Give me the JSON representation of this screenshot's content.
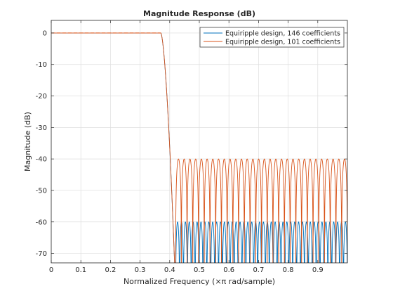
{
  "chart_data": {
    "type": "line",
    "title": "Magnitude Response (dB)",
    "xlabel": "Normalized Frequency (×π rad/sample)",
    "ylabel": "Magnitude (dB)",
    "xlim": [
      0,
      1
    ],
    "ylim": [
      -73,
      4
    ],
    "xticks": [
      0,
      0.1,
      0.2,
      0.3,
      0.4,
      0.5,
      0.6,
      0.7,
      0.8,
      0.9
    ],
    "xtick_labels": [
      "0",
      "0.1",
      "0.2",
      "0.3",
      "0.4",
      "0.5",
      "0.6",
      "0.7",
      "0.8",
      "0.9"
    ],
    "yticks": [
      0,
      -10,
      -20,
      -30,
      -40,
      -50,
      -60,
      -70
    ],
    "ytick_labels": [
      "0",
      "-10",
      "-20",
      "-30",
      "-40",
      "-50",
      "-60",
      "-70"
    ],
    "grid": true,
    "legend_position": "top-right",
    "series": [
      {
        "name": "Equiripple design, 146 coefficients",
        "color": "#0072BD",
        "passband_edge": 0.37,
        "stopband_edge": 0.42,
        "stopband_ripple_peak_db": -60,
        "stopband_lobes": 44
      },
      {
        "name": "Equiripple design, 101 coefficients",
        "color": "#D95319",
        "passband_edge": 0.37,
        "stopband_edge": 0.42,
        "stopband_ripple_peak_db": -40,
        "stopband_lobes": 30
      }
    ]
  }
}
